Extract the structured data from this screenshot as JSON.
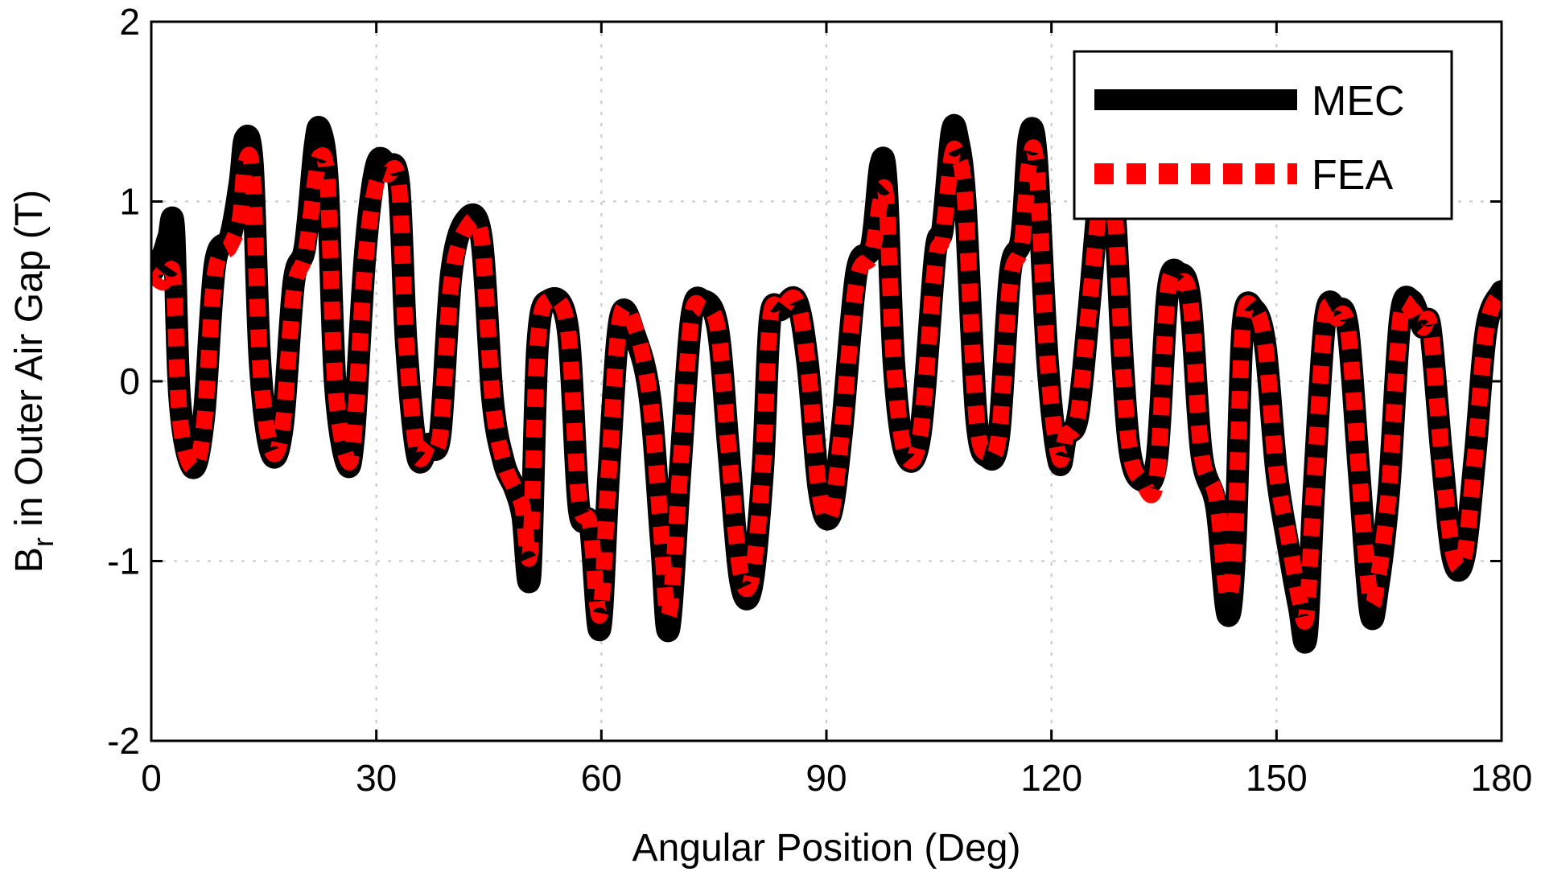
{
  "chart_data": {
    "type": "line",
    "title": "",
    "xlabel": "Angular Position (Deg)",
    "ylabel": {
      "main": "B",
      "subscript": "r",
      "rest": " in Outer Air Gap (T)"
    },
    "xlim": [
      0,
      180
    ],
    "ylim": [
      -2,
      2
    ],
    "xticks": [
      0,
      30,
      60,
      90,
      120,
      150,
      180
    ],
    "yticks": [
      -2,
      -1,
      0,
      1,
      2
    ],
    "xtick_labels": [
      "0",
      "30",
      "60",
      "90",
      "120",
      "150",
      "180"
    ],
    "ytick_labels": [
      "-2",
      "-1",
      "0",
      "1",
      "2"
    ],
    "grid": true,
    "legend_position": "top-right",
    "series": [
      {
        "name": "MEC",
        "color": "#000000",
        "style": "solid",
        "x": [
          0,
          1.5,
          2.3,
          3.0,
          3.8,
          5.5,
          7.0,
          8.5,
          10.5,
          11.8,
          12.5,
          13.5,
          14.5,
          16.0,
          17.5,
          19.0,
          20.5,
          21.8,
          22.5,
          23.5,
          24.5,
          26.0,
          27.0,
          28.5,
          30.0,
          31.5,
          33.0,
          34.0,
          35.5,
          37.0,
          38.5,
          40.0,
          42.0,
          44.0,
          45.5,
          47.0,
          48.5,
          49.5,
          50.5,
          51.5,
          53.0,
          55.5,
          57.0,
          58.5,
          59.8,
          61.0,
          62.5,
          64.5,
          66.5,
          68.0,
          69.0,
          70.5,
          72.0,
          73.5,
          75.5,
          77.0,
          78.5,
          80.0,
          81.5,
          82.5,
          84.0,
          86.0,
          87.5,
          89.0,
          90.5,
          92.0,
          94.0,
          96.0,
          97.2,
          98.0,
          99.0,
          100.5,
          102.5,
          104.5,
          105.5,
          106.7,
          107.5,
          108.5,
          110.0,
          111.5,
          113.0,
          114.5,
          116.0,
          117.0,
          118.0,
          119.5,
          121.0,
          122.0,
          123.5,
          125.0,
          126.5,
          127.5,
          128.5,
          129.5,
          130.5,
          132.0,
          134.0,
          135.5,
          137.0,
          138.5,
          140.0,
          142.0,
          143.5,
          144.5,
          145.5,
          147.0,
          148.5,
          150.0,
          151.5,
          153.0,
          154.0,
          155.0,
          156.5,
          158.0,
          159.5,
          161.0,
          162.5,
          163.5,
          165.0,
          166.5,
          168.0,
          169.5,
          170.5,
          172.0,
          173.5,
          175.0,
          176.5,
          178.0,
          180.0
        ],
        "y": [
          0.6,
          0.7,
          0.8,
          0.85,
          -0.1,
          -0.48,
          -0.2,
          0.65,
          0.8,
          1.1,
          1.35,
          1.2,
          0.1,
          -0.4,
          -0.25,
          0.55,
          0.75,
          1.3,
          1.4,
          1.1,
          0.0,
          -0.45,
          -0.3,
          0.7,
          1.2,
          1.2,
          1.1,
          0.2,
          -0.42,
          -0.35,
          -0.3,
          0.6,
          0.9,
          0.8,
          -0.1,
          -0.45,
          -0.6,
          -0.75,
          -1.08,
          0.2,
          0.45,
          0.3,
          -0.7,
          -0.8,
          -1.38,
          -0.5,
          0.35,
          0.25,
          -0.1,
          -0.9,
          -1.38,
          -0.5,
          0.35,
          0.45,
          0.3,
          -0.4,
          -1.1,
          -1.15,
          -0.5,
          0.35,
          0.4,
          0.45,
          0.1,
          -0.6,
          -0.75,
          -0.3,
          0.6,
          0.75,
          1.2,
          1.1,
          0.1,
          -0.4,
          -0.3,
          0.7,
          0.85,
          1.38,
          1.35,
          1.0,
          -0.2,
          -0.42,
          -0.3,
          0.6,
          0.8,
          1.35,
          1.25,
          0.1,
          -0.45,
          -0.3,
          -0.2,
          0.4,
          1.1,
          1.2,
          0.9,
          0.1,
          -0.4,
          -0.55,
          -0.45,
          0.5,
          0.6,
          0.45,
          -0.4,
          -0.7,
          -1.3,
          -0.9,
          0.3,
          0.4,
          0.2,
          -0.5,
          -0.9,
          -1.25,
          -1.42,
          -0.6,
          0.35,
          0.4,
          0.3,
          -0.5,
          -1.28,
          -1.15,
          -0.6,
          0.35,
          0.45,
          0.3,
          0.3,
          -0.4,
          -0.98,
          -0.98,
          -0.4,
          0.3,
          0.5
        ]
      },
      {
        "name": "FEA",
        "color": "#ff0000",
        "style": "dashed",
        "x": [
          0,
          1.5,
          2.3,
          3.0,
          3.8,
          5.5,
          7.0,
          8.5,
          10.5,
          11.8,
          12.5,
          13.5,
          14.5,
          16.0,
          17.5,
          19.0,
          20.5,
          21.8,
          22.5,
          23.5,
          24.5,
          26.0,
          27.0,
          28.5,
          30.0,
          31.5,
          33.0,
          34.0,
          35.5,
          37.0,
          38.5,
          40.0,
          42.0,
          44.0,
          45.5,
          47.0,
          48.5,
          49.5,
          50.5,
          51.5,
          53.0,
          55.5,
          57.0,
          58.5,
          59.8,
          61.0,
          62.5,
          64.5,
          66.5,
          68.0,
          69.0,
          70.5,
          72.0,
          73.5,
          75.5,
          77.0,
          78.5,
          80.0,
          81.5,
          82.5,
          84.0,
          86.0,
          87.5,
          89.0,
          90.5,
          92.0,
          94.0,
          96.0,
          97.2,
          98.0,
          99.0,
          100.5,
          102.5,
          104.5,
          105.5,
          106.7,
          107.5,
          108.5,
          110.0,
          111.5,
          113.0,
          114.5,
          116.0,
          117.0,
          118.0,
          119.5,
          121.0,
          122.0,
          123.5,
          125.0,
          126.5,
          127.5,
          128.5,
          129.5,
          130.5,
          132.0,
          134.0,
          135.5,
          137.0,
          138.5,
          140.0,
          142.0,
          143.5,
          144.5,
          145.5,
          147.0,
          148.5,
          150.0,
          151.5,
          153.0,
          154.0,
          155.0,
          156.5,
          158.0,
          159.5,
          161.0,
          162.5,
          163.5,
          165.0,
          166.5,
          168.0,
          169.5,
          170.5,
          172.0,
          173.5,
          175.0,
          176.5,
          178.0,
          180.0
        ],
        "y": [
          0.6,
          0.55,
          0.6,
          0.55,
          -0.2,
          -0.48,
          -0.25,
          0.6,
          0.75,
          0.9,
          1.2,
          1.15,
          0.1,
          -0.38,
          -0.25,
          0.5,
          0.7,
          1.1,
          1.25,
          1.1,
          0.0,
          -0.42,
          -0.3,
          0.65,
          1.1,
          1.15,
          1.1,
          0.2,
          -0.4,
          -0.35,
          -0.3,
          0.55,
          0.85,
          0.8,
          -0.1,
          -0.45,
          -0.6,
          -0.7,
          -0.95,
          0.2,
          0.45,
          0.3,
          -0.65,
          -0.8,
          -1.3,
          -0.5,
          0.35,
          0.3,
          -0.1,
          -0.85,
          -1.3,
          -0.5,
          0.35,
          0.4,
          0.3,
          -0.4,
          -1.05,
          -1.1,
          -0.5,
          0.35,
          0.4,
          0.45,
          0.1,
          -0.6,
          -0.75,
          -0.3,
          0.55,
          0.7,
          1.0,
          1.0,
          0.1,
          -0.4,
          -0.3,
          0.65,
          0.8,
          1.25,
          1.25,
          1.0,
          -0.2,
          -0.4,
          -0.3,
          0.55,
          0.75,
          1.2,
          1.2,
          0.1,
          -0.42,
          -0.3,
          -0.2,
          0.4,
          1.0,
          1.1,
          0.9,
          0.1,
          -0.4,
          -0.55,
          -0.55,
          0.5,
          0.55,
          0.45,
          -0.4,
          -0.65,
          -1.2,
          -0.85,
          0.3,
          0.4,
          0.2,
          -0.5,
          -0.85,
          -1.2,
          -1.3,
          -0.6,
          0.35,
          0.35,
          0.3,
          -0.5,
          -1.2,
          -1.1,
          -0.6,
          0.35,
          0.4,
          0.3,
          0.3,
          -0.4,
          -0.95,
          -0.98,
          -0.4,
          0.3,
          0.5
        ]
      }
    ]
  }
}
